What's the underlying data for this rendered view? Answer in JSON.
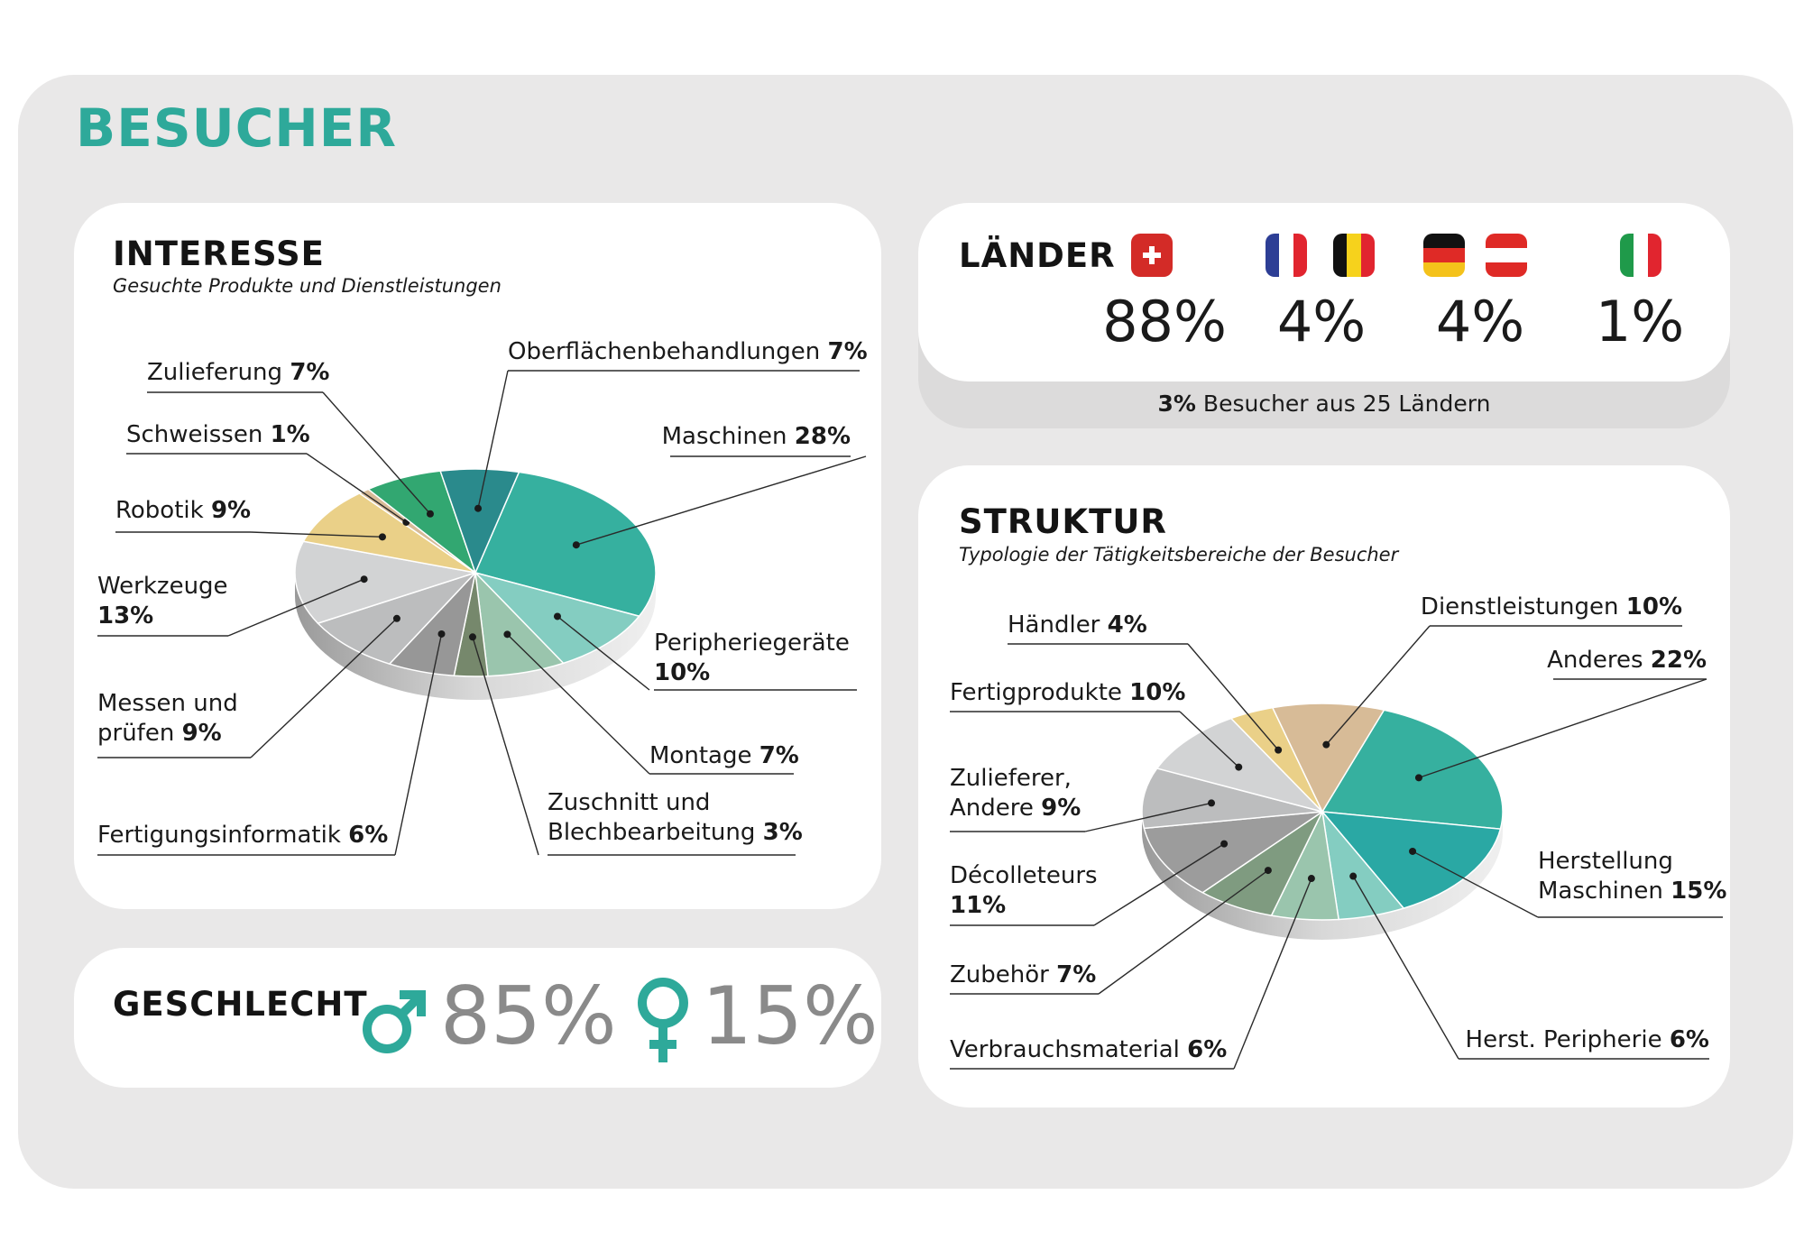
{
  "header": {
    "title": "BESUCHER"
  },
  "interesse": {
    "title": "INTERESSE",
    "subtitle": "Gesuchte Produkte und Dienstleistungen"
  },
  "laender": {
    "title": "LÄNDER",
    "groups": [
      {
        "flags": [
          "flag-switzerland"
        ],
        "pct": "88%"
      },
      {
        "flags": [
          "flag-france",
          "flag-belgium"
        ],
        "pct": "4%"
      },
      {
        "flags": [
          "flag-germany",
          "flag-austria"
        ],
        "pct": "4%"
      },
      {
        "flags": [
          "flag-italy"
        ],
        "pct": "1%"
      }
    ],
    "note_bold": "3%",
    "note_rest": " Besucher aus 25 Ländern"
  },
  "struktur": {
    "title": "STRUKTUR",
    "subtitle": "Typologie der Tätigkeitsbereiche der Besucher"
  },
  "geschlecht": {
    "title": "GESCHLECHT",
    "male_icon": "male-symbol-icon",
    "male_pct": "85%",
    "female_icon": "female-symbol-icon",
    "female_pct": "15%"
  },
  "colors": {
    "accent": "#2ea99a",
    "panel": "#ffffff",
    "background": "#e9e8e8"
  },
  "chart_data": [
    {
      "type": "pie",
      "title": "INTERESSE",
      "subtitle": "Gesuchte Produkte und Dienstleistungen",
      "slices": [
        {
          "label": "Maschinen",
          "pct_label": "28%",
          "value": 28,
          "color": "#36b09f"
        },
        {
          "label": "Peripheriegeräte",
          "pct_label": "10%",
          "value": 10,
          "color": "#84cdc1"
        },
        {
          "label": "Montage",
          "pct_label": "7%",
          "value": 7,
          "color": "#9ac5ad"
        },
        {
          "label": "Zuschnitt und",
          "label2": "Blechbearbeitung",
          "pct_label": "3%",
          "value": 3,
          "color": "#76886c"
        },
        {
          "label": "Fertigungsinformatik",
          "pct_label": "6%",
          "value": 6,
          "color": "#979797"
        },
        {
          "label": "Messen und",
          "label2": "prüfen",
          "pct_label": "9%",
          "value": 9,
          "color": "#bcbdbe"
        },
        {
          "label": "Werkzeuge",
          "pct_label": "13%",
          "value": 13,
          "color": "#d2d3d4"
        },
        {
          "label": "Robotik",
          "pct_label": "9%",
          "value": 9,
          "color": "#ead088"
        },
        {
          "label": "Schweissen",
          "pct_label": "1%",
          "value": 1,
          "color": "#d7bb97"
        },
        {
          "label": "Zulieferung",
          "pct_label": "7%",
          "value": 7,
          "color": "#32a771"
        },
        {
          "label": "Oberflächenbehandlungen",
          "pct_label": "7%",
          "value": 7,
          "color": "#2a8a8c"
        }
      ]
    },
    {
      "type": "pie",
      "title": "STRUKTUR",
      "subtitle": "Typologie der Tätigkeitsbereiche der Besucher",
      "slices": [
        {
          "label": "Anderes",
          "pct_label": "22%",
          "value": 22,
          "color": "#36b09f"
        },
        {
          "label": "Herstellung",
          "label2": "Maschinen",
          "pct_label": "15%",
          "value": 15,
          "color": "#2aa8a4"
        },
        {
          "label": "Herst. Peripherie",
          "pct_label": "6%",
          "value": 6,
          "color": "#84cdc1"
        },
        {
          "label": "Verbrauchsmaterial",
          "pct_label": "6%",
          "value": 6,
          "color": "#9ac5ad"
        },
        {
          "label": "Zubehör",
          "pct_label": "7%",
          "value": 7,
          "color": "#7f9b80"
        },
        {
          "label": "Décolleteurs",
          "pct_label": "11%",
          "value": 11,
          "color": "#9c9c9c"
        },
        {
          "label": "Zulieferer,",
          "label2": "Andere",
          "pct_label": "9%",
          "value": 9,
          "color": "#bcbdbe"
        },
        {
          "label": "Fertigprodukte",
          "pct_label": "10%",
          "value": 10,
          "color": "#d2d3d4"
        },
        {
          "label": "Händler",
          "pct_label": "4%",
          "value": 4,
          "color": "#ead088"
        },
        {
          "label": "Dienstleistungen",
          "pct_label": "10%",
          "value": 10,
          "color": "#d7bb97"
        }
      ]
    }
  ]
}
